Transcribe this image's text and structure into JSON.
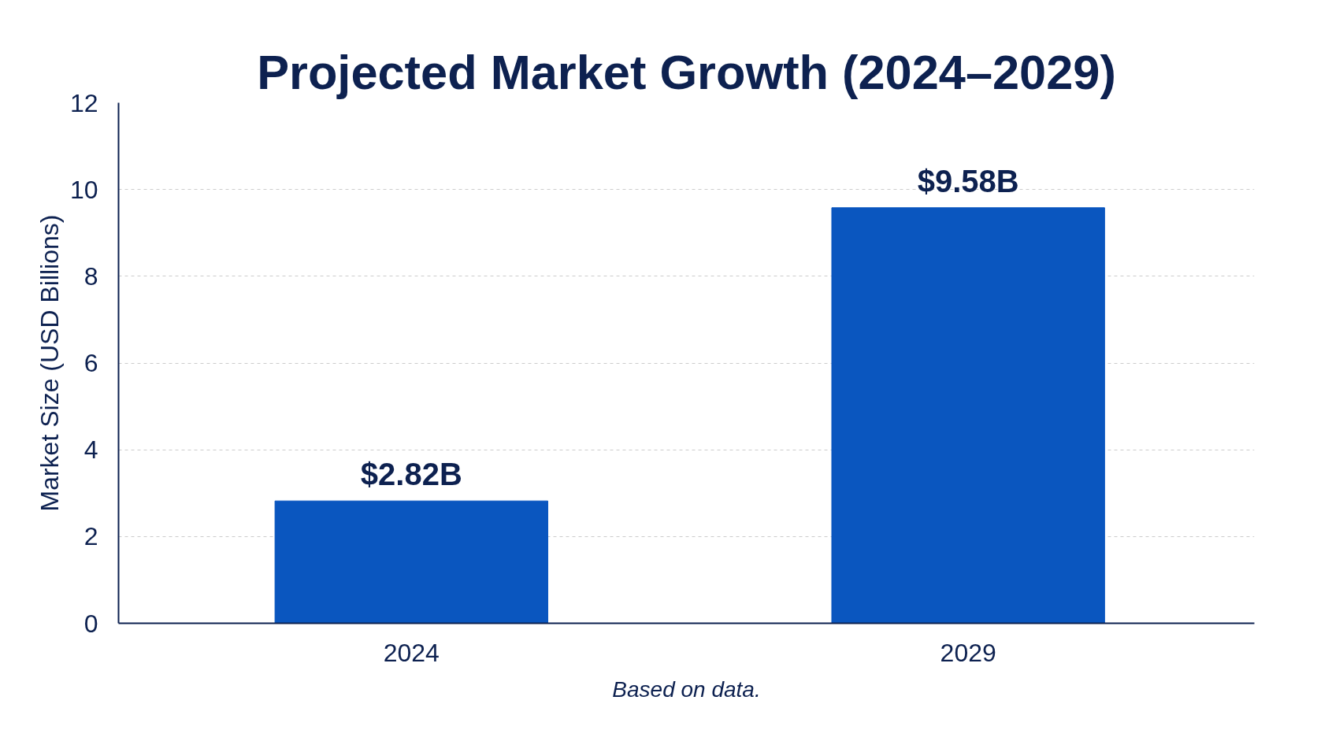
{
  "chart_data": {
    "type": "bar",
    "title": "Projected Market Growth (2024–2029)",
    "ylabel": "Market Size (USD Billions)",
    "categories": [
      "2024",
      "2029"
    ],
    "series": [
      {
        "color": "#0a56bf",
        "values": [
          2.82,
          9.58
        ],
        "value_labels": [
          "$2.82B",
          "$9.58B"
        ]
      }
    ],
    "ylim": [
      0,
      12
    ],
    "yticks": [
      0,
      2,
      4,
      6,
      8,
      10,
      12
    ],
    "grid": "y",
    "annotations": [
      "Based on data."
    ]
  }
}
